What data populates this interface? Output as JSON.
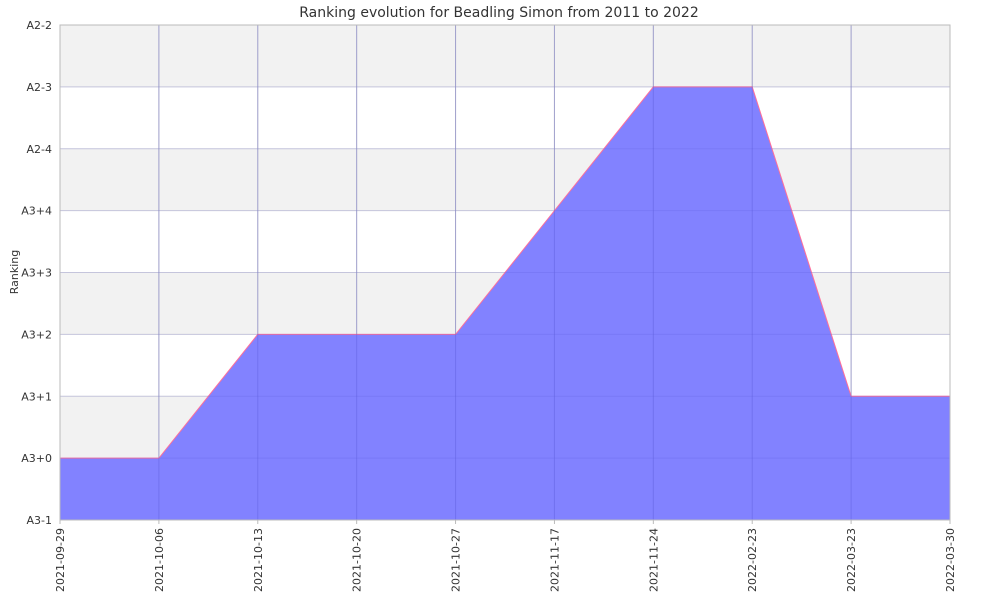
{
  "chart_data": {
    "type": "area",
    "title": "Ranking evolution for Beadling Simon from 2011 to 2022",
    "xlabel": "",
    "ylabel": "Ranking",
    "categories": [
      "2021-09-29",
      "2021-10-06",
      "2021-10-13",
      "2021-10-20",
      "2021-10-27",
      "2021-11-17",
      "2021-11-24",
      "2022-02-23",
      "2022-03-23",
      "2022-03-30"
    ],
    "y_ticks": [
      "A3-1",
      "A3+0",
      "A3+1",
      "A3+2",
      "A3+3",
      "A3+4",
      "A2-4",
      "A2-3",
      "A2-2"
    ],
    "series": [
      {
        "values": [
          "A3+0",
          "A3+0",
          "A3+2",
          "A3+2",
          "A3+2",
          "A3+4",
          "A2-3",
          "A2-3",
          "A3+1",
          "A3+1"
        ]
      }
    ],
    "grid": true,
    "colors": {
      "fill": "#7b7bff",
      "line": "#ff6f9a",
      "band": "#f2f2f2",
      "grid_horizontal": "#dddddd",
      "grid_vertical": "#c8c8c8",
      "axis": "#bbbbbb",
      "text": "#333333"
    }
  }
}
